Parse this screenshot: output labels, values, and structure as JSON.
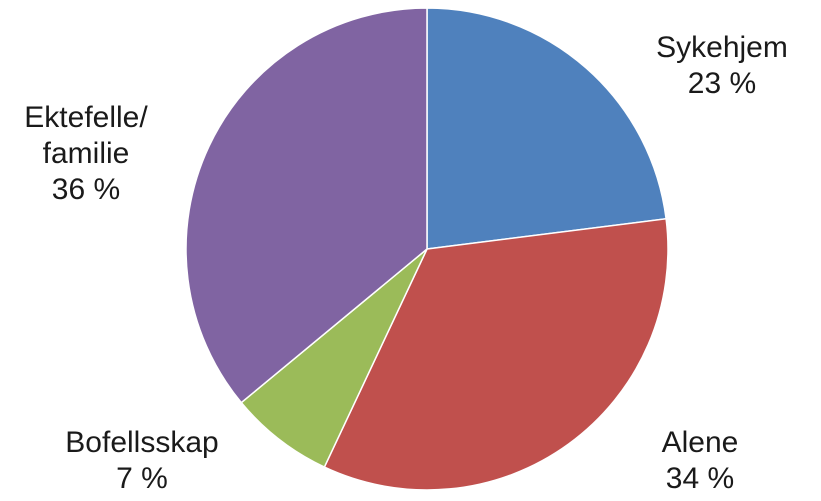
{
  "chart_data": {
    "type": "pie",
    "slices": [
      {
        "label": "Sykehjem",
        "label_lines": [
          "Sykehjem"
        ],
        "percent_label": "23 %",
        "value": 23,
        "color": "#4f81bd"
      },
      {
        "label": "Alene",
        "label_lines": [
          "Alene"
        ],
        "percent_label": "34 %",
        "value": 34,
        "color": "#c0504d"
      },
      {
        "label": "Bofellsskap",
        "label_lines": [
          "Bofellsskap"
        ],
        "percent_label": "7 %",
        "value": 7,
        "color": "#9bbb59"
      },
      {
        "label": "Ektefelle/ familie",
        "label_lines": [
          "Ektefelle/",
          "familie"
        ],
        "percent_label": "36 %",
        "value": 36,
        "color": "#8064a2"
      }
    ],
    "start": "12 o'clock",
    "direction": "clockwise",
    "legend": "none"
  }
}
